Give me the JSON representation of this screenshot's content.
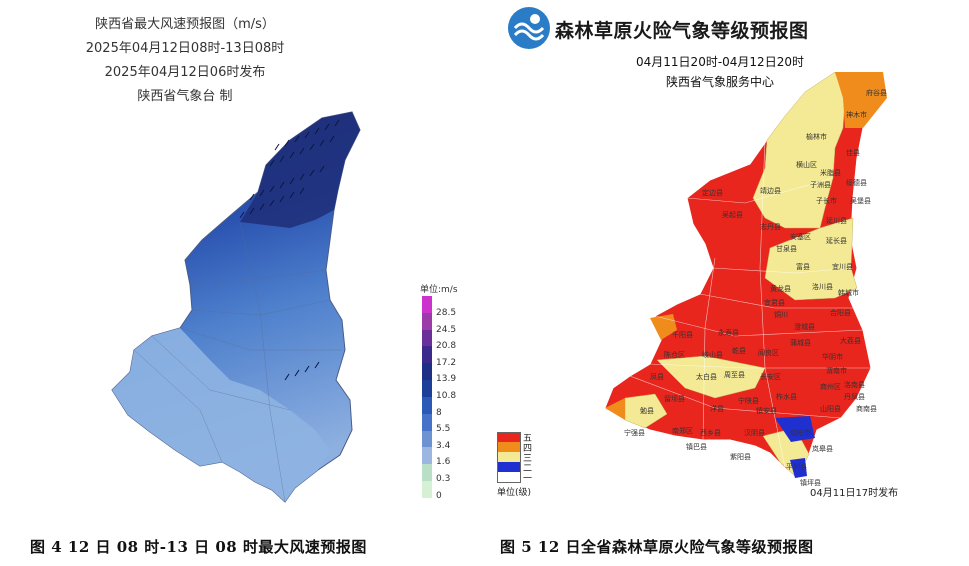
{
  "left_map": {
    "title_lines": [
      "陕西省最大风速预报图（m/s）",
      "2025年04月12日08时-13日08时",
      "2025年04月12日06时发布",
      "陕西省气象台 制"
    ],
    "legend_unit": "单位:m/s",
    "legend_ticks": [
      "28.5",
      "24.5",
      "20.8",
      "17.2",
      "13.9",
      "10.8",
      "8",
      "5.5",
      "3.4",
      "1.6",
      "0.3",
      "0"
    ],
    "legend_colors": [
      "#cc33cc",
      "#9b3aa8",
      "#6b2f9a",
      "#3b2a8c",
      "#1f2f86",
      "#1e3f98",
      "#2c58b8",
      "#4673c8",
      "#6d93d3",
      "#9bb6e0",
      "#b9e0c6",
      "#d6f0d6"
    ]
  },
  "right_map": {
    "title": "森林草原火险气象等级预报图",
    "time_range": "04月11日20时-04月12日20时",
    "issuer": "陕西省气象服务中心",
    "issued_note": "04月11日17时发布",
    "level_labels": [
      "五",
      "四",
      "三",
      "二",
      "一"
    ],
    "level_colors": [
      "#e8261e",
      "#f08c1c",
      "#f4ea96",
      "#1f2fd0",
      "#ffffff"
    ],
    "level_unit": "单位(级)",
    "counties": [
      "府谷县",
      "神木市",
      "榆林市",
      "佳县",
      "横山区",
      "米脂县",
      "子洲县",
      "绥德县",
      "定边县",
      "靖边县",
      "子长市",
      "吴堡县",
      "吴起县",
      "志丹县",
      "延川县",
      "安塞区",
      "延长县",
      "甘泉县",
      "富县",
      "宜川县",
      "洛川县",
      "黄龙县",
      "宜君县",
      "韩城市",
      "合阳县",
      "铜川",
      "澄城县",
      "千阳县",
      "永寿县",
      "蒲城县",
      "大荔县",
      "陈仓区",
      "岐山县",
      "乾县",
      "阎良区",
      "华阴市",
      "凤县",
      "太白县",
      "周至县",
      "长安区",
      "渭南市",
      "洛南县",
      "留坝县",
      "宁陕县",
      "商州区",
      "丹凤县",
      "勉县",
      "洋县",
      "柞水县",
      "山阳县",
      "商南县",
      "宁强县",
      "西乡县",
      "汉阴县",
      "镇安县",
      "旬阳市",
      "南郑区",
      "镇巴县",
      "紫阳县",
      "平利县",
      "镇坪县",
      "岚皋县"
    ]
  },
  "captions": [
    "图 4  12 日 08 时-13 日 08 时最大风速预报图",
    "图 5  12 日全省森林草原火险气象等级预报图"
  ]
}
